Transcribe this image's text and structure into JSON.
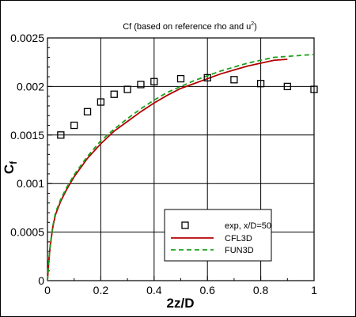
{
  "chart_data": {
    "type": "line",
    "title": "Cf (based on reference rho and u",
    "title_sup": "2",
    "title_end": ")",
    "xlabel": "2z/D",
    "ylabel_main": "C",
    "ylabel_sub": "f",
    "xlim": [
      0,
      1
    ],
    "ylim": [
      0,
      0.0025
    ],
    "xticks": [
      0,
      0.2,
      0.4,
      0.6,
      0.8,
      1
    ],
    "xtick_labels": [
      "0",
      "0.2",
      "0.4",
      "0.6",
      "0.8",
      "1"
    ],
    "yticks": [
      0,
      0.0005,
      0.001,
      0.0015,
      0.002,
      0.0025
    ],
    "ytick_labels": [
      "0",
      "0.0005",
      "0.001",
      "0.0015",
      "0.002",
      "0.0025"
    ],
    "grid": true,
    "legend_position": "bottom-right",
    "colors": {
      "experiment": "#000000",
      "cfl3d": "#b20000",
      "fun3d": "#1aa01a"
    },
    "series": [
      {
        "name": "exp, x/D=50",
        "style": "square-marker",
        "x": [
          0.05,
          0.1,
          0.15,
          0.2,
          0.25,
          0.3,
          0.35,
          0.4,
          0.5,
          0.6,
          0.7,
          0.8,
          0.9,
          1.0
        ],
        "y": [
          0.0015,
          0.0016,
          0.00174,
          0.00184,
          0.00192,
          0.00197,
          0.00202,
          0.00205,
          0.00208,
          0.00209,
          0.00207,
          0.00203,
          0.002,
          0.00197
        ]
      },
      {
        "name": "CFL3D",
        "style": "solid",
        "x": [
          0.0,
          0.005,
          0.01,
          0.02,
          0.03,
          0.05,
          0.07,
          0.1,
          0.15,
          0.2,
          0.25,
          0.3,
          0.35,
          0.4,
          0.45,
          0.5,
          0.55,
          0.6,
          0.65,
          0.7,
          0.75,
          0.8,
          0.85,
          0.9
        ],
        "y": [
          0.0,
          0.0002,
          0.00035,
          0.00055,
          0.00068,
          0.00082,
          0.00093,
          0.00107,
          0.00126,
          0.00141,
          0.00154,
          0.00164,
          0.00174,
          0.00183,
          0.00191,
          0.00198,
          0.00203,
          0.00208,
          0.00213,
          0.00217,
          0.00221,
          0.00224,
          0.00227,
          0.00228
        ]
      },
      {
        "name": "FUN3D",
        "style": "dashed",
        "x": [
          0.0,
          0.005,
          0.01,
          0.02,
          0.03,
          0.05,
          0.07,
          0.1,
          0.15,
          0.2,
          0.25,
          0.3,
          0.35,
          0.4,
          0.45,
          0.5,
          0.55,
          0.6,
          0.65,
          0.7,
          0.75,
          0.8,
          0.85,
          0.9,
          0.95,
          1.0
        ],
        "y": [
          0.0,
          0.0002,
          0.00036,
          0.00056,
          0.0007,
          0.00084,
          0.00095,
          0.00109,
          0.00128,
          0.00144,
          0.00156,
          0.00167,
          0.00177,
          0.00186,
          0.00194,
          0.002,
          0.00206,
          0.00211,
          0.00216,
          0.0022,
          0.00224,
          0.00227,
          0.0023,
          0.00231,
          0.00232,
          0.00233
        ]
      }
    ]
  }
}
